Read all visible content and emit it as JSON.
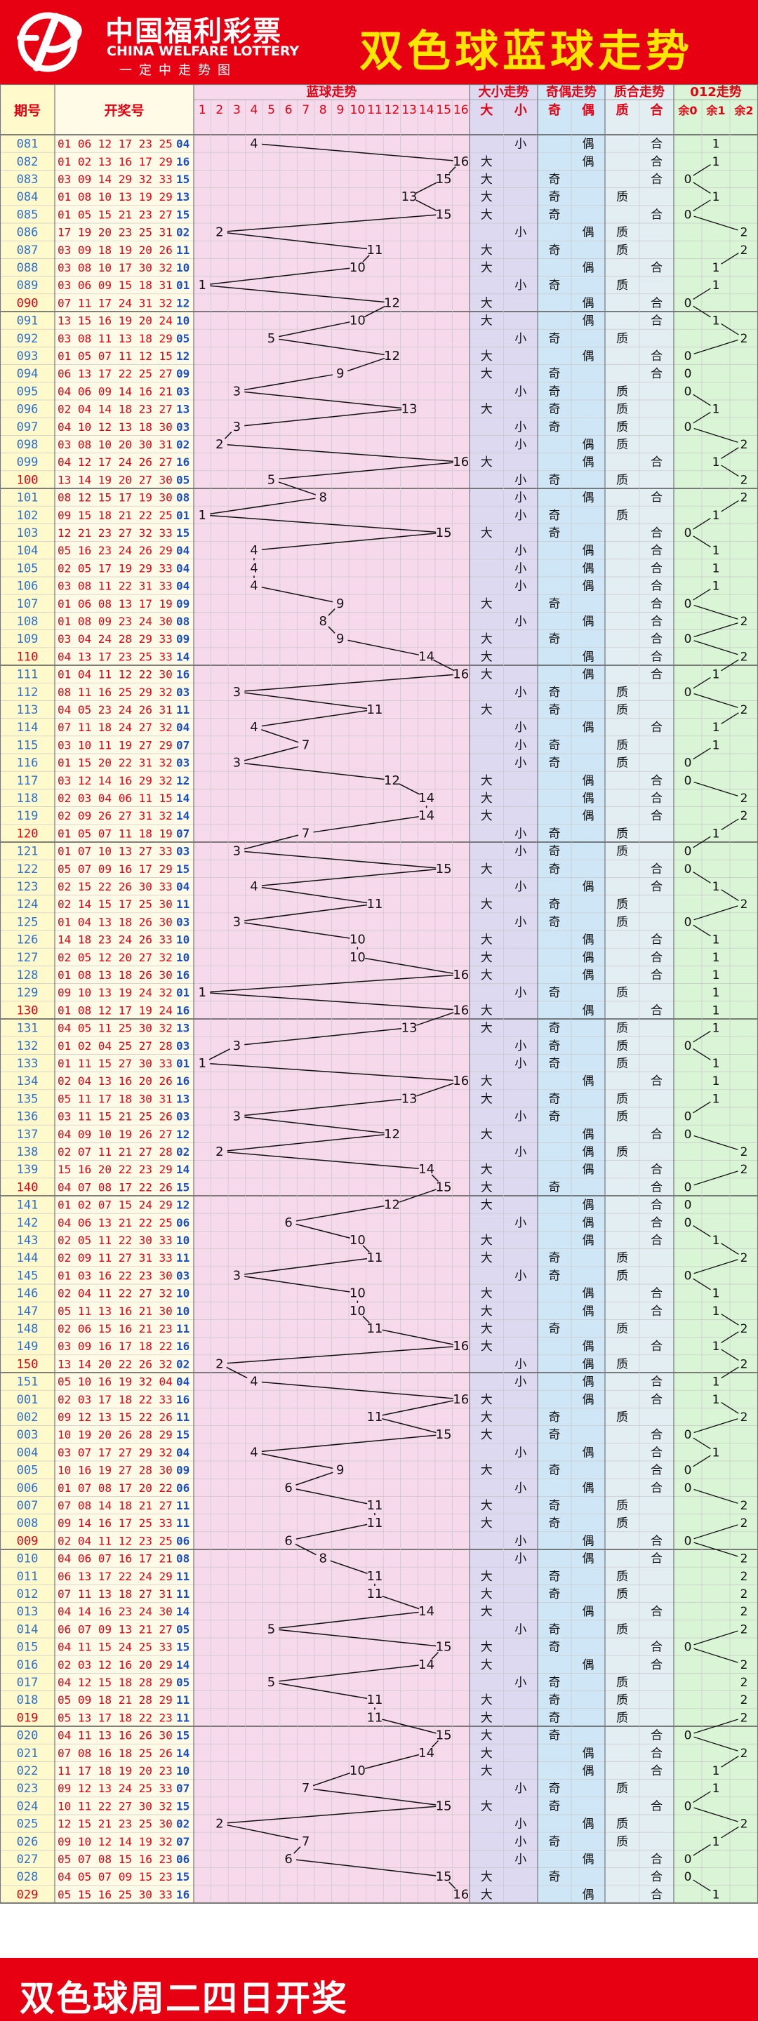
{
  "header": {
    "logo_cn": "中国福利彩票",
    "logo_en": "CHINA WELFARE LOTTERY",
    "logo_slogan": "一定中走势图",
    "title": "双色球蓝球走势"
  },
  "footer": {
    "text": "双色球周二四日开奖"
  },
  "colors": {
    "brand_red": "#e60012",
    "title_yellow": "#ffe600",
    "issue_blue": "#2a6fd6",
    "issue_red": "#e60012",
    "red_ball_text": "#e60012",
    "blue_ball_text": "#1a4fc4",
    "blue_zone_bg": "#f6d9ea",
    "size_zone_bg": "#ddd9f0",
    "parity_zone_bg": "#cfe6f6",
    "prime_zone_bg": "#e3eef3",
    "mod_zone_bg": "#d9f5d5",
    "issue_col_bg": "#fff9cc",
    "draw_col_bg": "#fffbe6"
  },
  "table": {
    "headers": {
      "issue": "期号",
      "draw": "开奖号",
      "blue_trend": "蓝球走势",
      "size_trend": "大小走势",
      "parity_trend": "奇偶走势",
      "prime_trend": "质合走势",
      "mod_trend": "012走势"
    },
    "blue_numbers": [
      "1",
      "2",
      "3",
      "4",
      "5",
      "6",
      "7",
      "8",
      "9",
      "10",
      "11",
      "12",
      "13",
      "14",
      "15",
      "16"
    ],
    "size_labels": [
      "大",
      "小"
    ],
    "parity_labels": [
      "奇",
      "偶"
    ],
    "prime_labels": [
      "质",
      "合"
    ],
    "mod_labels": [
      "余0",
      "余1",
      "余2"
    ]
  },
  "chart_data": {
    "type": "table",
    "title": "双色球蓝球走势",
    "series": [
      {
        "name": "蓝球走势",
        "values": "blue of each row"
      }
    ],
    "rows": [
      {
        "issue": "081",
        "reds": "01 06 12 17 23 25",
        "blue": 4,
        "size": "小",
        "parity": "偶",
        "prime": "合",
        "mod": "1"
      },
      {
        "issue": "082",
        "reds": "01 02 13 16 17 29",
        "blue": 16,
        "size": "大",
        "parity": "偶",
        "prime": "合",
        "mod": "1"
      },
      {
        "issue": "083",
        "reds": "03 09 14 29 32 33",
        "blue": 15,
        "size": "大",
        "parity": "奇",
        "prime": "合",
        "mod": "0"
      },
      {
        "issue": "084",
        "reds": "01 08 10 13 19 29",
        "blue": 13,
        "size": "大",
        "parity": "奇",
        "prime": "质",
        "mod": "1"
      },
      {
        "issue": "085",
        "reds": "01 05 15 21 23 27",
        "blue": 15,
        "size": "大",
        "parity": "奇",
        "prime": "合",
        "mod": "0"
      },
      {
        "issue": "086",
        "reds": "17 19 20 23 25 31",
        "blue": 2,
        "size": "小",
        "parity": "偶",
        "prime": "质",
        "mod": "2"
      },
      {
        "issue": "087",
        "reds": "03 09 18 19 20 26",
        "blue": 11,
        "size": "大",
        "parity": "奇",
        "prime": "质",
        "mod": "2"
      },
      {
        "issue": "088",
        "reds": "03 08 10 17 30 32",
        "blue": 10,
        "size": "大",
        "parity": "偶",
        "prime": "合",
        "mod": "1"
      },
      {
        "issue": "089",
        "reds": "03 06 09 15 18 31",
        "blue": 1,
        "size": "小",
        "parity": "奇",
        "prime": "质",
        "mod": "1"
      },
      {
        "issue": "090",
        "reds": "07 11 17 24 31 32",
        "blue": 12,
        "size": "大",
        "parity": "偶",
        "prime": "合",
        "mod": "0"
      },
      {
        "issue": "091",
        "reds": "13 15 16 19 20 24",
        "blue": 10,
        "size": "大",
        "parity": "偶",
        "prime": "合",
        "mod": "1"
      },
      {
        "issue": "092",
        "reds": "03 08 11 13 18 29",
        "blue": 5,
        "size": "小",
        "parity": "奇",
        "prime": "质",
        "mod": "2"
      },
      {
        "issue": "093",
        "reds": "01 05 07 11 12 15",
        "blue": 12,
        "size": "大",
        "parity": "偶",
        "prime": "合",
        "mod": "0"
      },
      {
        "issue": "094",
        "reds": "06 13 17 22 25 27",
        "blue": 9,
        "size": "大",
        "parity": "奇",
        "prime": "合",
        "mod": "0"
      },
      {
        "issue": "095",
        "reds": "04 06 09 14 16 21",
        "blue": 3,
        "size": "小",
        "parity": "奇",
        "prime": "质",
        "mod": "0"
      },
      {
        "issue": "096",
        "reds": "02 04 14 18 23 27",
        "blue": 13,
        "size": "大",
        "parity": "奇",
        "prime": "质",
        "mod": "1"
      },
      {
        "issue": "097",
        "reds": "04 10 12 13 18 30",
        "blue": 3,
        "size": "小",
        "parity": "奇",
        "prime": "质",
        "mod": "0"
      },
      {
        "issue": "098",
        "reds": "03 08 10 20 30 31",
        "blue": 2,
        "size": "小",
        "parity": "偶",
        "prime": "质",
        "mod": "2"
      },
      {
        "issue": "099",
        "reds": "04 12 17 24 26 27",
        "blue": 16,
        "size": "大",
        "parity": "偶",
        "prime": "合",
        "mod": "1"
      },
      {
        "issue": "100",
        "reds": "13 14 19 20 27 30",
        "blue": 5,
        "size": "小",
        "parity": "奇",
        "prime": "质",
        "mod": "2"
      },
      {
        "issue": "101",
        "reds": "08 12 15 17 19 30",
        "blue": 8,
        "size": "小",
        "parity": "偶",
        "prime": "合",
        "mod": "2"
      },
      {
        "issue": "102",
        "reds": "09 15 18 21 22 25",
        "blue": 1,
        "size": "小",
        "parity": "奇",
        "prime": "质",
        "mod": "1"
      },
      {
        "issue": "103",
        "reds": "12 21 23 27 32 33",
        "blue": 15,
        "size": "大",
        "parity": "奇",
        "prime": "合",
        "mod": "0"
      },
      {
        "issue": "104",
        "reds": "05 16 23 24 26 29",
        "blue": 4,
        "size": "小",
        "parity": "偶",
        "prime": "合",
        "mod": "1"
      },
      {
        "issue": "105",
        "reds": "02 05 17 19 29 33",
        "blue": 4,
        "size": "小",
        "parity": "偶",
        "prime": "合",
        "mod": "1"
      },
      {
        "issue": "106",
        "reds": "03 08 11 22 31 33",
        "blue": 4,
        "size": "小",
        "parity": "偶",
        "prime": "合",
        "mod": "1"
      },
      {
        "issue": "107",
        "reds": "01 06 08 13 17 19",
        "blue": 9,
        "size": "大",
        "parity": "奇",
        "prime": "合",
        "mod": "0"
      },
      {
        "issue": "108",
        "reds": "01 08 09 23 24 30",
        "blue": 8,
        "size": "小",
        "parity": "偶",
        "prime": "合",
        "mod": "2"
      },
      {
        "issue": "109",
        "reds": "03 04 24 28 29 33",
        "blue": 9,
        "size": "大",
        "parity": "奇",
        "prime": "合",
        "mod": "0"
      },
      {
        "issue": "110",
        "reds": "04 13 17 23 25 33",
        "blue": 14,
        "size": "大",
        "parity": "偶",
        "prime": "合",
        "mod": "2"
      },
      {
        "issue": "111",
        "reds": "01 04 11 12 22 30",
        "blue": 16,
        "size": "大",
        "parity": "偶",
        "prime": "合",
        "mod": "1"
      },
      {
        "issue": "112",
        "reds": "08 11 16 25 29 32",
        "blue": 3,
        "size": "小",
        "parity": "奇",
        "prime": "质",
        "mod": "0"
      },
      {
        "issue": "113",
        "reds": "04 05 23 24 26 31",
        "blue": 11,
        "size": "大",
        "parity": "奇",
        "prime": "质",
        "mod": "2"
      },
      {
        "issue": "114",
        "reds": "07 11 18 24 27 32",
        "blue": 4,
        "size": "小",
        "parity": "偶",
        "prime": "合",
        "mod": "1"
      },
      {
        "issue": "115",
        "reds": "03 10 11 19 27 29",
        "blue": 7,
        "size": "小",
        "parity": "奇",
        "prime": "质",
        "mod": "1"
      },
      {
        "issue": "116",
        "reds": "01 15 20 22 31 32",
        "blue": 3,
        "size": "小",
        "parity": "奇",
        "prime": "质",
        "mod": "0"
      },
      {
        "issue": "117",
        "reds": "03 12 14 16 29 32",
        "blue": 12,
        "size": "大",
        "parity": "偶",
        "prime": "合",
        "mod": "0"
      },
      {
        "issue": "118",
        "reds": "02 03 04 06 11 15",
        "blue": 14,
        "size": "大",
        "parity": "偶",
        "prime": "合",
        "mod": "2"
      },
      {
        "issue": "119",
        "reds": "02 09 26 27 31 32",
        "blue": 14,
        "size": "大",
        "parity": "偶",
        "prime": "合",
        "mod": "2"
      },
      {
        "issue": "120",
        "reds": "01 05 07 11 18 19",
        "blue": 7,
        "size": "小",
        "parity": "奇",
        "prime": "质",
        "mod": "1"
      },
      {
        "issue": "121",
        "reds": "01 07 10 13 27 33",
        "blue": 3,
        "size": "小",
        "parity": "奇",
        "prime": "质",
        "mod": "0"
      },
      {
        "issue": "122",
        "reds": "05 07 09 16 17 29",
        "blue": 15,
        "size": "大",
        "parity": "奇",
        "prime": "合",
        "mod": "0"
      },
      {
        "issue": "123",
        "reds": "02 15 22 26 30 33",
        "blue": 4,
        "size": "小",
        "parity": "偶",
        "prime": "合",
        "mod": "1"
      },
      {
        "issue": "124",
        "reds": "02 14 15 17 25 30",
        "blue": 11,
        "size": "大",
        "parity": "奇",
        "prime": "质",
        "mod": "2"
      },
      {
        "issue": "125",
        "reds": "01 04 13 18 26 30",
        "blue": 3,
        "size": "小",
        "parity": "奇",
        "prime": "质",
        "mod": "0"
      },
      {
        "issue": "126",
        "reds": "14 18 23 24 26 33",
        "blue": 10,
        "size": "大",
        "parity": "偶",
        "prime": "合",
        "mod": "1"
      },
      {
        "issue": "127",
        "reds": "02 05 12 20 27 32",
        "blue": 10,
        "size": "大",
        "parity": "偶",
        "prime": "合",
        "mod": "1"
      },
      {
        "issue": "128",
        "reds": "01 08 13 18 26 30",
        "blue": 16,
        "size": "大",
        "parity": "偶",
        "prime": "合",
        "mod": "1"
      },
      {
        "issue": "129",
        "reds": "09 10 13 19 24 32",
        "blue": 1,
        "size": "小",
        "parity": "奇",
        "prime": "质",
        "mod": "1"
      },
      {
        "issue": "130",
        "reds": "01 08 12 17 19 24",
        "blue": 16,
        "size": "大",
        "parity": "偶",
        "prime": "合",
        "mod": "1"
      },
      {
        "issue": "131",
        "reds": "04 05 11 25 30 32",
        "blue": 13,
        "size": "大",
        "parity": "奇",
        "prime": "质",
        "mod": "1"
      },
      {
        "issue": "132",
        "reds": "01 02 04 25 27 28",
        "blue": 3,
        "size": "小",
        "parity": "奇",
        "prime": "质",
        "mod": "0"
      },
      {
        "issue": "133",
        "reds": "01 11 15 27 30 33",
        "blue": 1,
        "size": "小",
        "parity": "奇",
        "prime": "质",
        "mod": "1"
      },
      {
        "issue": "134",
        "reds": "02 04 13 16 20 26",
        "blue": 16,
        "size": "大",
        "parity": "偶",
        "prime": "合",
        "mod": "1"
      },
      {
        "issue": "135",
        "reds": "05 11 17 18 30 31",
        "blue": 13,
        "size": "大",
        "parity": "奇",
        "prime": "质",
        "mod": "1"
      },
      {
        "issue": "136",
        "reds": "03 11 15 21 25 26",
        "blue": 3,
        "size": "小",
        "parity": "奇",
        "prime": "质",
        "mod": "0"
      },
      {
        "issue": "137",
        "reds": "04 09 10 19 26 27",
        "blue": 12,
        "size": "大",
        "parity": "偶",
        "prime": "合",
        "mod": "0"
      },
      {
        "issue": "138",
        "reds": "02 07 11 21 27 28",
        "blue": 2,
        "size": "小",
        "parity": "偶",
        "prime": "质",
        "mod": "2"
      },
      {
        "issue": "139",
        "reds": "15 16 20 22 23 29",
        "blue": 14,
        "size": "大",
        "parity": "偶",
        "prime": "合",
        "mod": "2"
      },
      {
        "issue": "140",
        "reds": "04 07 08 17 22 26",
        "blue": 15,
        "size": "大",
        "parity": "奇",
        "prime": "合",
        "mod": "0"
      },
      {
        "issue": "141",
        "reds": "01 02 07 15 24 29",
        "blue": 12,
        "size": "大",
        "parity": "偶",
        "prime": "合",
        "mod": "0"
      },
      {
        "issue": "142",
        "reds": "04 06 13 21 22 25",
        "blue": 6,
        "size": "小",
        "parity": "偶",
        "prime": "合",
        "mod": "0"
      },
      {
        "issue": "143",
        "reds": "02 05 11 22 30 33",
        "blue": 10,
        "size": "大",
        "parity": "偶",
        "prime": "合",
        "mod": "1"
      },
      {
        "issue": "144",
        "reds": "02 09 11 27 31 33",
        "blue": 11,
        "size": "大",
        "parity": "奇",
        "prime": "质",
        "mod": "2"
      },
      {
        "issue": "145",
        "reds": "01 03 16 22 23 30",
        "blue": 3,
        "size": "小",
        "parity": "奇",
        "prime": "质",
        "mod": "0"
      },
      {
        "issue": "146",
        "reds": "02 04 11 22 27 32",
        "blue": 10,
        "size": "大",
        "parity": "偶",
        "prime": "合",
        "mod": "1"
      },
      {
        "issue": "147",
        "reds": "05 11 13 16 21 30",
        "blue": 10,
        "size": "大",
        "parity": "偶",
        "prime": "合",
        "mod": "1"
      },
      {
        "issue": "148",
        "reds": "02 06 15 16 21 23",
        "blue": 11,
        "size": "大",
        "parity": "奇",
        "prime": "质",
        "mod": "2"
      },
      {
        "issue": "149",
        "reds": "03 09 16 17 18 22",
        "blue": 16,
        "size": "大",
        "parity": "偶",
        "prime": "合",
        "mod": "1"
      },
      {
        "issue": "150",
        "reds": "13 14 20 22 26 32",
        "blue": 2,
        "size": "小",
        "parity": "偶",
        "prime": "质",
        "mod": "2"
      },
      {
        "issue": "151",
        "reds": "05 10 16 19 32 04",
        "blue": 4,
        "size": "小",
        "parity": "偶",
        "prime": "合",
        "mod": "1"
      },
      {
        "issue": "001",
        "reds": "02 03 17 18 22 33",
        "blue": 16,
        "size": "大",
        "parity": "偶",
        "prime": "合",
        "mod": "1"
      },
      {
        "issue": "002",
        "reds": "09 12 13 15 22 26",
        "blue": 11,
        "size": "大",
        "parity": "奇",
        "prime": "质",
        "mod": "2"
      },
      {
        "issue": "003",
        "reds": "10 19 20 26 28 29",
        "blue": 15,
        "size": "大",
        "parity": "奇",
        "prime": "合",
        "mod": "0"
      },
      {
        "issue": "004",
        "reds": "03 07 17 27 29 32",
        "blue": 4,
        "size": "小",
        "parity": "偶",
        "prime": "合",
        "mod": "1"
      },
      {
        "issue": "005",
        "reds": "10 16 19 27 28 30",
        "blue": 9,
        "size": "大",
        "parity": "奇",
        "prime": "合",
        "mod": "0"
      },
      {
        "issue": "006",
        "reds": "01 07 08 17 20 22",
        "blue": 6,
        "size": "小",
        "parity": "偶",
        "prime": "合",
        "mod": "0"
      },
      {
        "issue": "007",
        "reds": "07 08 14 18 21 27",
        "blue": 11,
        "size": "大",
        "parity": "奇",
        "prime": "质",
        "mod": "2"
      },
      {
        "issue": "008",
        "reds": "09 14 16 17 25 33",
        "blue": 11,
        "size": "大",
        "parity": "奇",
        "prime": "质",
        "mod": "2"
      },
      {
        "issue": "009",
        "reds": "02 04 11 12 23 25",
        "blue": 6,
        "size": "小",
        "parity": "偶",
        "prime": "合",
        "mod": "0"
      },
      {
        "issue": "010",
        "reds": "04 06 07 16 17 21",
        "blue": 8,
        "size": "小",
        "parity": "偶",
        "prime": "合",
        "mod": "2"
      },
      {
        "issue": "011",
        "reds": "06 13 17 22 24 29",
        "blue": 11,
        "size": "大",
        "parity": "奇",
        "prime": "质",
        "mod": "2"
      },
      {
        "issue": "012",
        "reds": "07 11 13 18 27 31",
        "blue": 11,
        "size": "大",
        "parity": "奇",
        "prime": "质",
        "mod": "2"
      },
      {
        "issue": "013",
        "reds": "04 14 16 23 24 30",
        "blue": 14,
        "size": "大",
        "parity": "偶",
        "prime": "合",
        "mod": "2"
      },
      {
        "issue": "014",
        "reds": "06 07 09 13 21 27",
        "blue": 5,
        "size": "小",
        "parity": "奇",
        "prime": "质",
        "mod": "2"
      },
      {
        "issue": "015",
        "reds": "04 11 15 24 25 33",
        "blue": 15,
        "size": "大",
        "parity": "奇",
        "prime": "合",
        "mod": "0"
      },
      {
        "issue": "016",
        "reds": "02 03 12 16 20 29",
        "blue": 14,
        "size": "大",
        "parity": "偶",
        "prime": "合",
        "mod": "2"
      },
      {
        "issue": "017",
        "reds": "04 12 15 18 28 29",
        "blue": 5,
        "size": "小",
        "parity": "奇",
        "prime": "质",
        "mod": "2"
      },
      {
        "issue": "018",
        "reds": "05 09 18 21 28 29",
        "blue": 11,
        "size": "大",
        "parity": "奇",
        "prime": "质",
        "mod": "2"
      },
      {
        "issue": "019",
        "reds": "05 13 17 18 22 23",
        "blue": 11,
        "size": "大",
        "parity": "奇",
        "prime": "质",
        "mod": "2"
      },
      {
        "issue": "020",
        "reds": "04 11 13 16 26 30",
        "blue": 15,
        "size": "大",
        "parity": "奇",
        "prime": "合",
        "mod": "0"
      },
      {
        "issue": "021",
        "reds": "07 08 16 18 25 26",
        "blue": 14,
        "size": "大",
        "parity": "偶",
        "prime": "合",
        "mod": "2"
      },
      {
        "issue": "022",
        "reds": "11 17 18 19 20 23",
        "blue": 10,
        "size": "大",
        "parity": "偶",
        "prime": "合",
        "mod": "1"
      },
      {
        "issue": "023",
        "reds": "09 12 13 24 25 33",
        "blue": 7,
        "size": "小",
        "parity": "奇",
        "prime": "质",
        "mod": "1"
      },
      {
        "issue": "024",
        "reds": "10 11 22 27 30 32",
        "blue": 15,
        "size": "大",
        "parity": "奇",
        "prime": "合",
        "mod": "0"
      },
      {
        "issue": "025",
        "reds": "12 15 21 23 25 30",
        "blue": 2,
        "size": "小",
        "parity": "偶",
        "prime": "质",
        "mod": "2"
      },
      {
        "issue": "026",
        "reds": "09 10 12 14 19 32",
        "blue": 7,
        "size": "小",
        "parity": "奇",
        "prime": "质",
        "mod": "1"
      },
      {
        "issue": "027",
        "reds": "05 07 08 15 16 23",
        "blue": 6,
        "size": "小",
        "parity": "偶",
        "prime": "合",
        "mod": "0"
      },
      {
        "issue": "028",
        "reds": "04 05 07 09 15 23",
        "blue": 15,
        "size": "大",
        "parity": "奇",
        "prime": "合",
        "mod": "0"
      },
      {
        "issue": "029",
        "reds": "05 15 16 25 30 33",
        "blue": 16,
        "size": "大",
        "parity": "偶",
        "prime": "合",
        "mod": "1"
      }
    ]
  }
}
